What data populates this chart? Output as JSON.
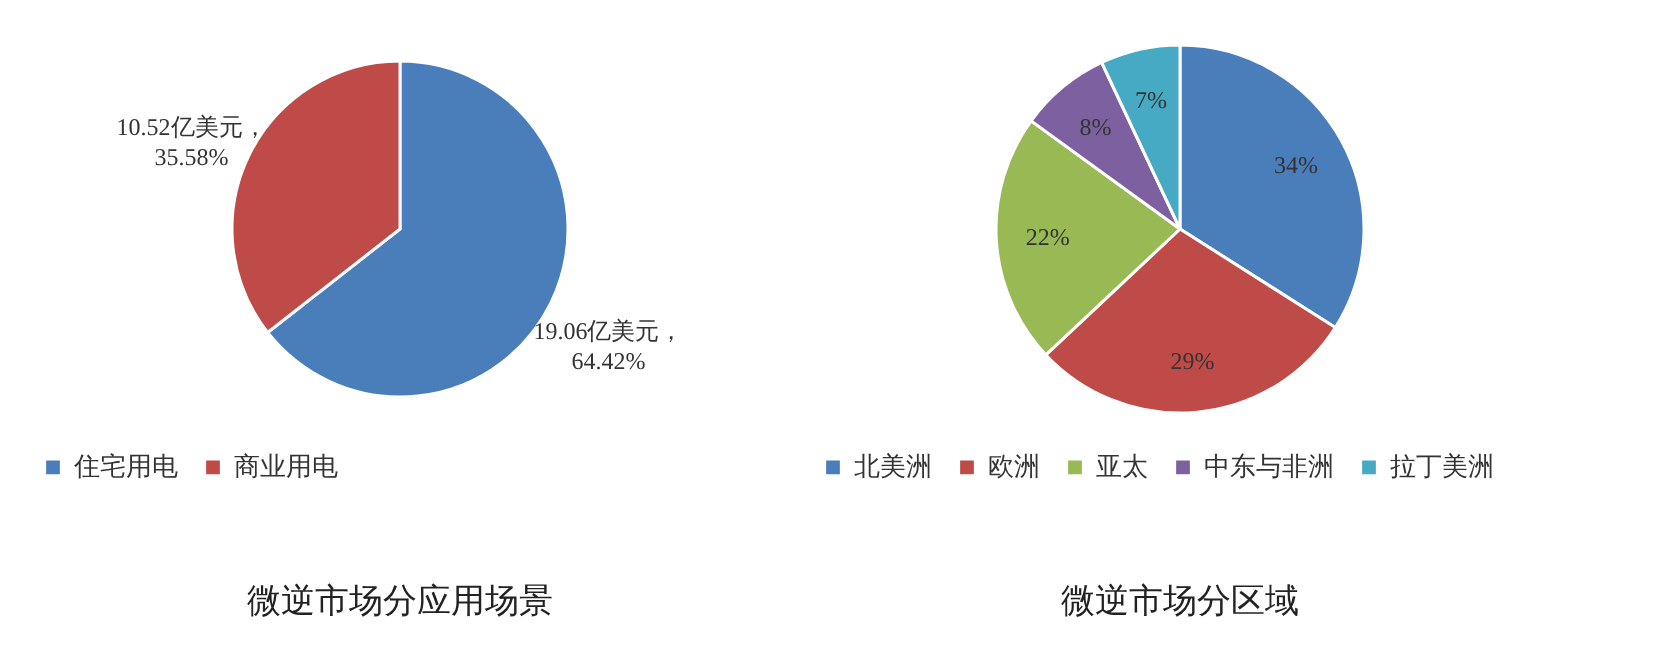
{
  "chart_data": [
    {
      "type": "pie",
      "title": "微逆市场分应用场景",
      "categories": [
        "住宅用电",
        "商业用电"
      ],
      "values": [
        19.06,
        10.52
      ],
      "colors": [
        "#4a7ebb",
        "#be4b48"
      ],
      "value_labels": [
        "19.06亿美元，64.42%",
        "10.52亿美元，35.58%"
      ],
      "legend": "bottom"
    },
    {
      "type": "pie",
      "title": "微逆市场分区域",
      "categories": [
        "北美洲",
        "欧洲",
        "亚太",
        "中东与非洲",
        "拉丁美洲"
      ],
      "values": [
        34,
        29,
        22,
        8,
        7
      ],
      "colors": [
        "#4a7ebb",
        "#be4b48",
        "#98b954",
        "#7d60a0",
        "#46aac5"
      ],
      "value_labels": [
        "34%",
        "29%",
        "22%",
        "8%",
        "7%"
      ],
      "legend": "bottom"
    }
  ]
}
